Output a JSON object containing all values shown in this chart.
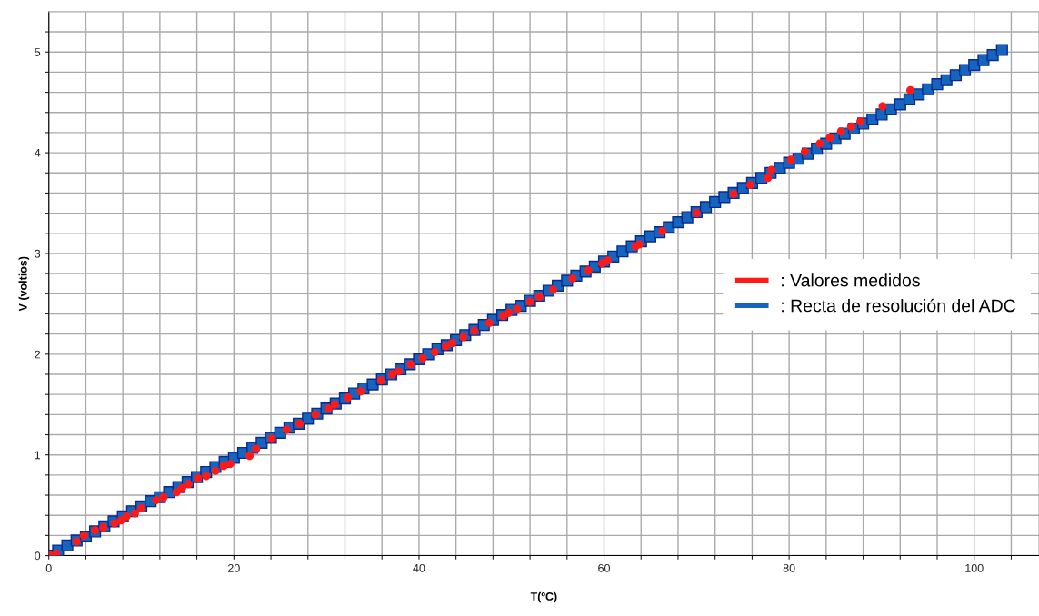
{
  "chart_data": {
    "type": "scatter",
    "xlabel": "T(ºC)",
    "ylabel": "V (voltios)",
    "xlim": [
      0,
      107
    ],
    "ylim": [
      0,
      5.4
    ],
    "xticks": [
      0,
      {
        "value": 4,
        "label": null
      },
      {
        "value": 8,
        "label": null
      },
      {
        "value": 12,
        "label": null
      },
      {
        "value": 16,
        "label": null
      },
      20,
      {
        "value": 24,
        "label": null
      },
      {
        "value": 28,
        "label": null
      },
      {
        "value": 32,
        "label": null
      },
      {
        "value": 36,
        "label": null
      },
      40,
      {
        "value": 44,
        "label": null
      },
      {
        "value": 48,
        "label": null
      },
      {
        "value": 52,
        "label": null
      },
      {
        "value": 56,
        "label": null
      },
      60,
      {
        "value": 64,
        "label": null
      },
      {
        "value": 68,
        "label": null
      },
      {
        "value": 72,
        "label": null
      },
      {
        "value": 76,
        "label": null
      },
      80,
      {
        "value": 84,
        "label": null
      },
      {
        "value": 88,
        "label": null
      },
      {
        "value": 92,
        "label": null
      },
      {
        "value": 96,
        "label": null
      },
      100,
      {
        "value": 104,
        "label": null
      }
    ],
    "yticks": [
      0,
      {
        "value": 0.2,
        "label": null
      },
      {
        "value": 0.4,
        "label": null
      },
      {
        "value": 0.6,
        "label": null
      },
      {
        "value": 0.8,
        "label": null
      },
      1,
      {
        "value": 1.2,
        "label": null
      },
      {
        "value": 1.4,
        "label": null
      },
      {
        "value": 1.6,
        "label": null
      },
      {
        "value": 1.8,
        "label": null
      },
      2,
      {
        "value": 2.2,
        "label": null
      },
      {
        "value": 2.4,
        "label": null
      },
      {
        "value": 2.6,
        "label": null
      },
      {
        "value": 2.8,
        "label": null
      },
      3,
      {
        "value": 3.2,
        "label": null
      },
      {
        "value": 3.4,
        "label": null
      },
      {
        "value": 3.6,
        "label": null
      },
      {
        "value": 3.8,
        "label": null
      },
      4,
      {
        "value": 4.2,
        "label": null
      },
      {
        "value": 4.4,
        "label": null
      },
      {
        "value": 4.6,
        "label": null
      },
      {
        "value": 4.8,
        "label": null
      },
      5,
      {
        "value": 5.2,
        "label": null
      }
    ],
    "grid": true,
    "legend": "right",
    "series": [
      {
        "name": ": Recta de resolución del ADC",
        "color": "#1565c0",
        "marker": "square",
        "x": [
          0,
          1,
          2,
          3,
          4,
          5,
          6,
          7,
          8,
          9,
          10,
          11,
          12,
          13,
          14,
          15,
          16,
          17,
          18,
          19,
          20,
          21,
          22,
          23,
          24,
          25,
          26,
          27,
          28,
          29,
          30,
          31,
          32,
          33,
          34,
          35,
          36,
          37,
          38,
          39,
          40,
          41,
          42,
          43,
          44,
          45,
          46,
          47,
          48,
          49,
          50,
          51,
          52,
          53,
          54,
          55,
          56,
          57,
          58,
          59,
          60,
          61,
          62,
          63,
          64,
          65,
          66,
          67,
          68,
          69,
          70,
          71,
          72,
          73,
          74,
          75,
          76,
          77,
          78,
          79,
          80,
          81,
          82,
          83,
          84,
          85,
          86,
          87,
          88,
          89,
          90,
          91,
          92,
          93,
          94,
          95,
          96,
          97,
          98,
          99,
          100,
          101,
          102,
          103
        ],
        "values": [
          0,
          0.05,
          0.1,
          0.15,
          0.19,
          0.24,
          0.29,
          0.34,
          0.39,
          0.44,
          0.49,
          0.54,
          0.58,
          0.63,
          0.68,
          0.73,
          0.78,
          0.83,
          0.88,
          0.93,
          0.97,
          1.02,
          1.07,
          1.12,
          1.17,
          1.22,
          1.27,
          1.31,
          1.36,
          1.41,
          1.46,
          1.51,
          1.56,
          1.61,
          1.66,
          1.7,
          1.75,
          1.8,
          1.85,
          1.9,
          1.95,
          2.0,
          2.05,
          2.09,
          2.14,
          2.19,
          2.24,
          2.29,
          2.34,
          2.39,
          2.44,
          2.48,
          2.53,
          2.58,
          2.63,
          2.68,
          2.73,
          2.78,
          2.82,
          2.87,
          2.92,
          2.97,
          3.02,
          3.07,
          3.12,
          3.17,
          3.21,
          3.26,
          3.31,
          3.36,
          3.41,
          3.46,
          3.51,
          3.56,
          3.6,
          3.65,
          3.7,
          3.75,
          3.8,
          3.85,
          3.9,
          3.94,
          3.99,
          4.04,
          4.09,
          4.14,
          4.19,
          4.24,
          4.29,
          4.33,
          4.38,
          4.43,
          4.48,
          4.53,
          4.58,
          4.63,
          4.68,
          4.72,
          4.77,
          4.82,
          4.87,
          4.92,
          4.97,
          5.02
        ]
      },
      {
        "name": ": Valores medidos",
        "color": "#ff1a1a",
        "marker": "circle",
        "x": [
          0.1,
          0.8,
          3.0,
          3.8,
          5.0,
          5.9,
          7.1,
          7.8,
          8.4,
          9.3,
          10.0,
          11.6,
          12.4,
          13.8,
          14.4,
          15.1,
          16.1,
          17.0,
          18.0,
          18.9,
          19.6,
          21.7,
          22.4,
          24.1,
          25.7,
          27.1,
          28.8,
          30.2,
          30.9,
          32.3,
          33.7,
          35.9,
          37.1,
          37.8,
          39.1,
          40.4,
          41.7,
          42.9,
          43.6,
          44.8,
          46.0,
          47.6,
          49.1,
          49.7,
          50.6,
          52.0,
          53.0,
          54.5,
          56.6,
          58.3,
          59.8,
          60.4,
          63.4,
          63.8,
          66.3,
          70.0,
          74.0,
          75.8,
          77.7,
          78.1,
          80.2,
          81.7,
          83.3,
          84.4,
          85.6,
          86.7,
          87.7,
          90.1,
          93.1
        ],
        "values": [
          0.0,
          0.02,
          0.14,
          0.2,
          0.25,
          0.28,
          0.32,
          0.35,
          0.39,
          0.42,
          0.47,
          0.55,
          0.58,
          0.63,
          0.67,
          0.71,
          0.77,
          0.79,
          0.84,
          0.89,
          0.91,
          0.99,
          1.06,
          1.16,
          1.25,
          1.31,
          1.4,
          1.46,
          1.5,
          1.57,
          1.63,
          1.74,
          1.8,
          1.83,
          1.9,
          1.96,
          2.02,
          2.08,
          2.11,
          2.17,
          2.23,
          2.31,
          2.38,
          2.41,
          2.45,
          2.52,
          2.57,
          2.64,
          2.75,
          2.83,
          2.9,
          2.93,
          3.07,
          3.09,
          3.22,
          3.4,
          3.59,
          3.68,
          3.75,
          3.83,
          3.93,
          4.01,
          4.09,
          4.15,
          4.21,
          4.26,
          4.31,
          4.46,
          4.62
        ]
      }
    ]
  }
}
